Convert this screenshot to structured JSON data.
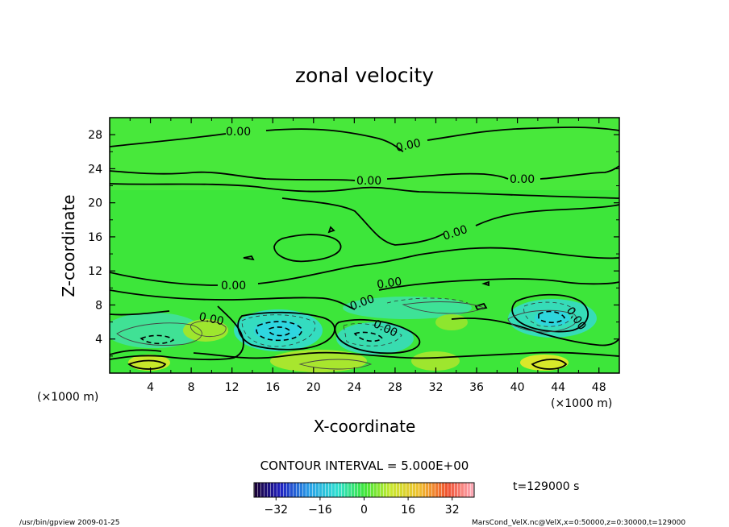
{
  "chart_data": {
    "type": "contour",
    "title": "zonal velocity",
    "xlabel": "X-coordinate",
    "ylabel": "Z-coordinate",
    "x_unit": "(×1000 m)",
    "y_unit": "(×1000 m)",
    "xlim": [
      0,
      50
    ],
    "ylim": [
      0,
      30
    ],
    "x_ticks": [
      "4",
      "8",
      "12",
      "16",
      "20",
      "24",
      "28",
      "32",
      "36",
      "40",
      "44",
      "48"
    ],
    "y_ticks": [
      "4",
      "8",
      "12",
      "16",
      "20",
      "24",
      "28"
    ],
    "contour_interval_text": "CONTOUR INTERVAL = 5.000E+00",
    "contour_levels": [
      0
    ],
    "contour_labels": [
      "0.00",
      "0.00",
      "0.00",
      "0.00",
      "0.00",
      "0.00",
      "0.00",
      "0.00",
      "0.00",
      "0.00",
      "0.00"
    ],
    "colorbar": {
      "range": [
        -40,
        40
      ],
      "tick_labels": [
        "−32",
        "−16",
        "0",
        "16",
        "32"
      ]
    },
    "time_label": "t=129000 s",
    "footer_left": "/usr/bin/gpview  2009-01-25",
    "footer_right": "MarsCond_VelX.nc@VelX,x=0:50000,z=0:30000,t=129000",
    "colors": {
      "background_field": "#3de63a",
      "negative_low": "#2ee0a8",
      "negative_mid": "#2ed6d6",
      "positive_low": "#9ee62e",
      "positive_mid": "#d8e82a"
    }
  }
}
